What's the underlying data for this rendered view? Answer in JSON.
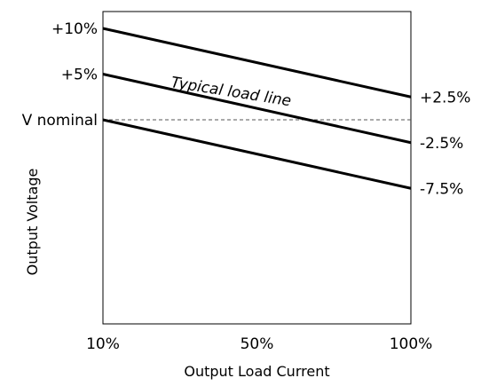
{
  "chart_data": {
    "type": "line",
    "xlabel": "Output Load Current",
    "ylabel": "Output Voltage",
    "x_ticks": [
      "10%",
      "50%",
      "100%"
    ],
    "x": [
      10,
      100
    ],
    "xlim": [
      10,
      100
    ],
    "series": [
      {
        "values": [
          10,
          2.5
        ],
        "end_label": "+2.5%"
      },
      {
        "values": [
          5,
          -2.5
        ],
        "end_label": "-2.5%"
      },
      {
        "values": [
          0,
          -7.5
        ],
        "end_label": "-7.5%"
      }
    ],
    "y_left_labels": [
      {
        "value": 10,
        "text": "+10%"
      },
      {
        "value": 5,
        "text": "+5%"
      },
      {
        "value": 0,
        "text": "V nominal"
      }
    ],
    "reference_line": {
      "value": 0,
      "style": "dashed"
    },
    "annotation": "Typical load line",
    "grid": false,
    "legend": "none"
  }
}
